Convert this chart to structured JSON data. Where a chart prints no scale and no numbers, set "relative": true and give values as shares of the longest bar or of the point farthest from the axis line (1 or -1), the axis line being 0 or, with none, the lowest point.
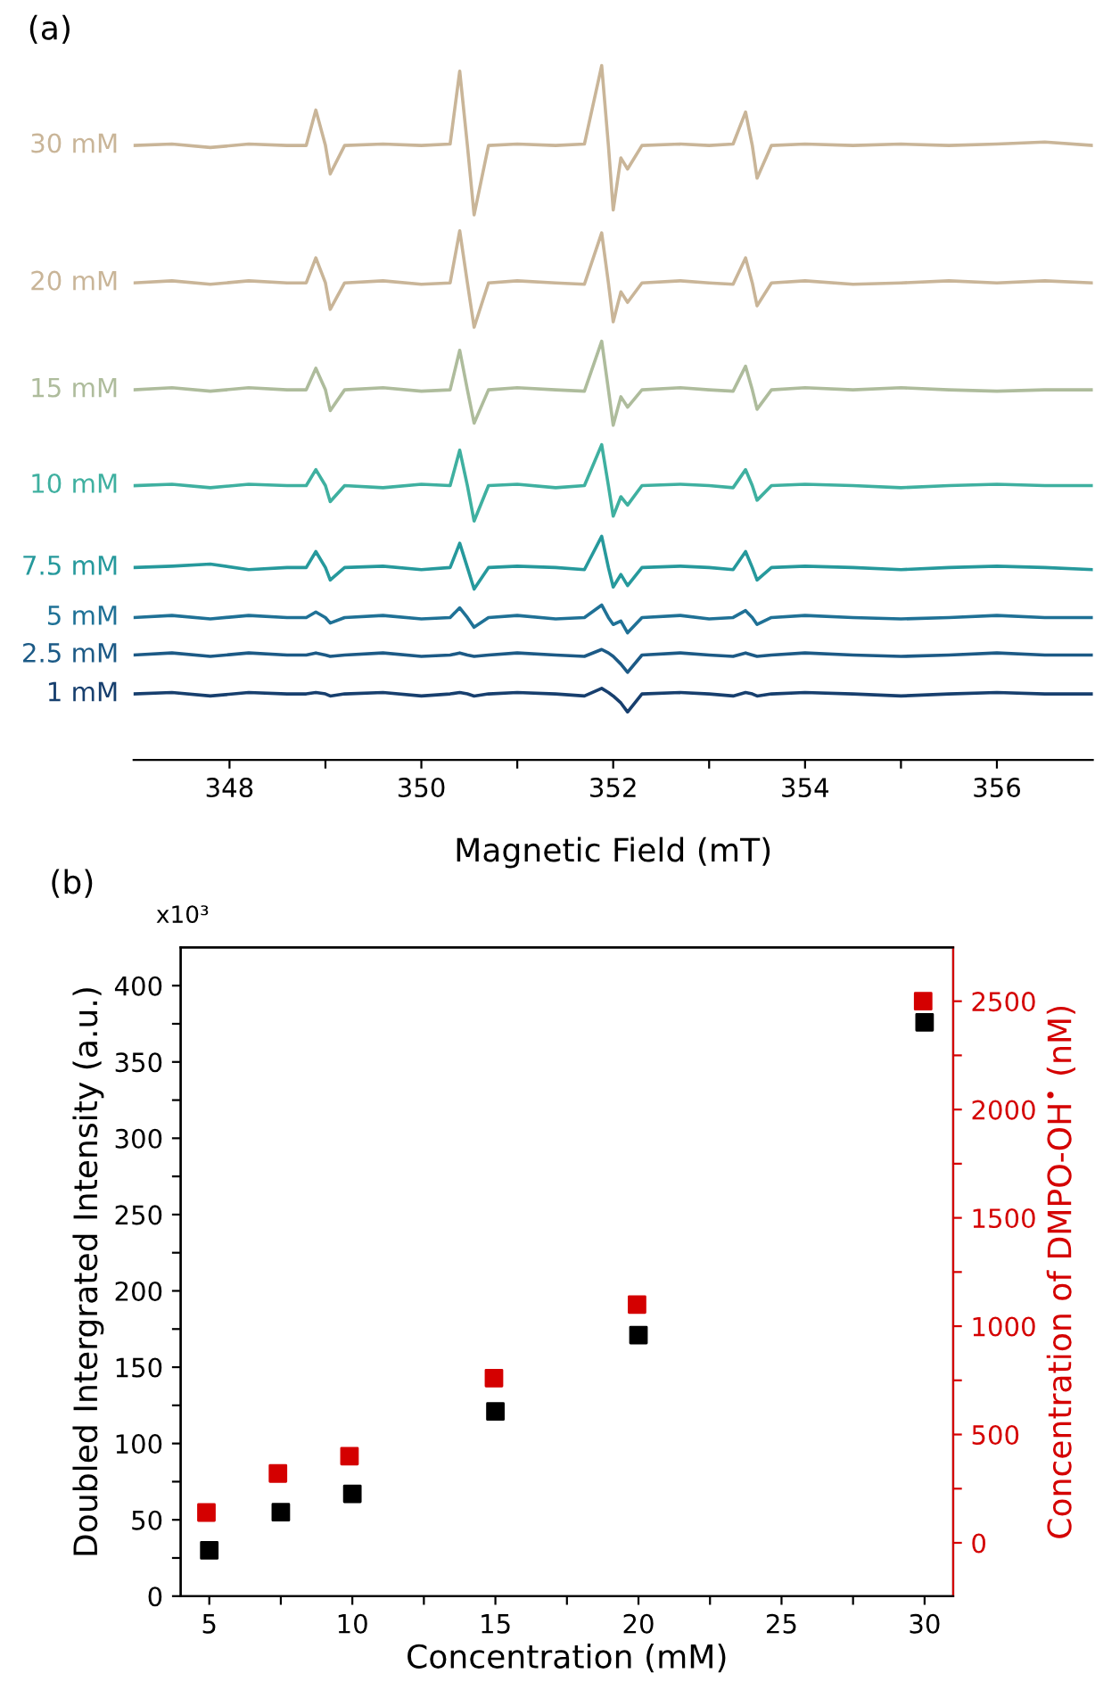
{
  "chart_data": [
    {
      "type": "line",
      "title": "(a)",
      "xlabel": "Magnetic Field (mT)",
      "relative": true,
      "x": [
        347.0,
        347.4,
        347.8,
        348.2,
        348.6,
        348.8,
        348.9,
        349.0,
        349.05,
        349.2,
        349.6,
        350.0,
        350.3,
        350.4,
        350.48,
        350.55,
        350.7,
        351.0,
        351.4,
        351.7,
        351.88,
        351.95,
        352.0,
        352.08,
        352.15,
        352.3,
        352.7,
        353.0,
        353.25,
        353.38,
        353.45,
        353.5,
        353.65,
        354.0,
        354.5,
        355.0,
        355.5,
        356.0,
        356.5,
        357.0
      ],
      "xlim": [
        347,
        357
      ],
      "xticks": [
        348,
        {
          "value": 349,
          "label": null
        },
        350,
        {
          "value": 351,
          "label": null
        },
        352,
        {
          "value": 353,
          "label": null
        },
        354,
        {
          "value": 355,
          "label": null
        },
        356
      ],
      "series": [
        {
          "name": "30 mM",
          "color": "#c9b598",
          "values": [
            0.885,
            0.887,
            0.882,
            0.887,
            0.885,
            0.885,
            0.936,
            0.885,
            0.844,
            0.885,
            0.887,
            0.885,
            0.887,
            0.992,
            0.885,
            0.785,
            0.885,
            0.887,
            0.885,
            0.887,
            1.0,
            0.885,
            0.792,
            0.867,
            0.851,
            0.885,
            0.887,
            0.885,
            0.887,
            0.933,
            0.885,
            0.838,
            0.885,
            0.887,
            0.885,
            0.887,
            0.885,
            0.887,
            0.89,
            0.885
          ]
        },
        {
          "name": "20 mM",
          "color": "#c9b598",
          "values": [
            0.687,
            0.69,
            0.685,
            0.69,
            0.687,
            0.687,
            0.723,
            0.687,
            0.649,
            0.687,
            0.69,
            0.685,
            0.687,
            0.762,
            0.687,
            0.623,
            0.687,
            0.69,
            0.687,
            0.685,
            0.759,
            0.687,
            0.631,
            0.674,
            0.659,
            0.687,
            0.69,
            0.687,
            0.685,
            0.723,
            0.687,
            0.654,
            0.687,
            0.69,
            0.685,
            0.687,
            0.69,
            0.687,
            0.69,
            0.687
          ]
        },
        {
          "name": "15 mM",
          "color": "#aebc9c",
          "values": [
            0.533,
            0.536,
            0.531,
            0.536,
            0.533,
            0.533,
            0.564,
            0.533,
            0.503,
            0.533,
            0.536,
            0.531,
            0.533,
            0.59,
            0.533,
            0.485,
            0.533,
            0.536,
            0.533,
            0.531,
            0.603,
            0.533,
            0.482,
            0.523,
            0.508,
            0.533,
            0.536,
            0.533,
            0.531,
            0.567,
            0.533,
            0.505,
            0.533,
            0.536,
            0.533,
            0.536,
            0.533,
            0.531,
            0.533,
            0.533
          ]
        },
        {
          "name": "10 mM",
          "color": "#3fb0a0",
          "values": [
            0.395,
            0.397,
            0.392,
            0.397,
            0.395,
            0.395,
            0.418,
            0.395,
            0.372,
            0.395,
            0.392,
            0.397,
            0.395,
            0.446,
            0.395,
            0.344,
            0.395,
            0.397,
            0.392,
            0.395,
            0.454,
            0.395,
            0.351,
            0.379,
            0.367,
            0.395,
            0.397,
            0.395,
            0.392,
            0.418,
            0.395,
            0.374,
            0.395,
            0.397,
            0.395,
            0.392,
            0.395,
            0.397,
            0.395,
            0.395
          ]
        },
        {
          "name": "7.5 mM",
          "color": "#26999c",
          "values": [
            0.277,
            0.279,
            0.282,
            0.274,
            0.277,
            0.277,
            0.3,
            0.277,
            0.259,
            0.277,
            0.279,
            0.274,
            0.277,
            0.312,
            0.277,
            0.246,
            0.277,
            0.279,
            0.277,
            0.274,
            0.322,
            0.277,
            0.249,
            0.267,
            0.251,
            0.277,
            0.279,
            0.277,
            0.274,
            0.3,
            0.277,
            0.259,
            0.277,
            0.279,
            0.277,
            0.274,
            0.277,
            0.279,
            0.277,
            0.274
          ]
        },
        {
          "name": "5 mM",
          "color": "#1f7196",
          "values": [
            0.205,
            0.208,
            0.203,
            0.208,
            0.205,
            0.205,
            0.213,
            0.205,
            0.197,
            0.205,
            0.208,
            0.203,
            0.205,
            0.219,
            0.205,
            0.191,
            0.205,
            0.208,
            0.203,
            0.205,
            0.223,
            0.205,
            0.195,
            0.2,
            0.183,
            0.205,
            0.208,
            0.203,
            0.205,
            0.215,
            0.205,
            0.195,
            0.205,
            0.208,
            0.205,
            0.203,
            0.205,
            0.208,
            0.205,
            0.205
          ]
        },
        {
          "name": "2.5 mM",
          "color": "#1c5a86",
          "values": [
            0.151,
            0.154,
            0.149,
            0.154,
            0.151,
            0.151,
            0.154,
            0.151,
            0.149,
            0.151,
            0.154,
            0.149,
            0.151,
            0.154,
            0.151,
            0.149,
            0.151,
            0.154,
            0.151,
            0.149,
            0.159,
            0.154,
            0.149,
            0.138,
            0.126,
            0.151,
            0.154,
            0.151,
            0.149,
            0.154,
            0.151,
            0.149,
            0.151,
            0.154,
            0.151,
            0.149,
            0.151,
            0.154,
            0.151,
            0.151
          ]
        },
        {
          "name": "1 mM",
          "color": "#173f6e",
          "values": [
            0.095,
            0.097,
            0.092,
            0.097,
            0.095,
            0.095,
            0.097,
            0.095,
            0.092,
            0.095,
            0.097,
            0.092,
            0.095,
            0.097,
            0.095,
            0.092,
            0.095,
            0.097,
            0.095,
            0.092,
            0.103,
            0.097,
            0.092,
            0.082,
            0.069,
            0.095,
            0.097,
            0.095,
            0.092,
            0.097,
            0.095,
            0.092,
            0.095,
            0.097,
            0.095,
            0.092,
            0.095,
            0.097,
            0.095,
            0.095
          ]
        }
      ]
    },
    {
      "type": "scatter",
      "title": "(b)",
      "xlabel": "Concentration (mM)",
      "ylabel": "Doubled Intergrated Intensity (a.u.)",
      "y2label": "Concentration of DMPO-OH$^{•}$ (nM)",
      "annotations": [
        "x10³"
      ],
      "marker": "square",
      "grid": false,
      "xlim": [
        4,
        31
      ],
      "xticks": [
        5,
        {
          "value": 7.5,
          "label": null
        },
        10,
        {
          "value": 12.5,
          "label": null
        },
        15,
        {
          "value": 17.5,
          "label": null
        },
        20,
        {
          "value": 22.5,
          "label": null
        },
        25,
        {
          "value": 27.5,
          "label": null
        },
        30
      ],
      "ylim": [
        0,
        425
      ],
      "yticks": [
        0,
        {
          "value": 25,
          "label": null
        },
        50,
        {
          "value": 75,
          "label": null
        },
        100,
        {
          "value": 125,
          "label": null
        },
        150,
        {
          "value": 175,
          "label": null
        },
        200,
        {
          "value": 225,
          "label": null
        },
        250,
        {
          "value": 275,
          "label": null
        },
        300,
        {
          "value": 325,
          "label": null
        },
        350,
        {
          "value": 375,
          "label": null
        },
        400
      ],
      "y2lim": [
        -246,
        2748
      ],
      "y2ticks": [
        0,
        {
          "value": 250,
          "label": null
        },
        500,
        {
          "value": 750,
          "label": null
        },
        1000,
        {
          "value": 1250,
          "label": null
        },
        1500,
        {
          "value": 1750,
          "label": null
        },
        2000,
        {
          "value": 2250,
          "label": null
        },
        2500
      ],
      "series": [
        {
          "color": "#000000",
          "x": [
            5,
            7.5,
            10,
            15,
            20,
            30
          ],
          "values": [
            30,
            55,
            67,
            121,
            171,
            376
          ]
        },
        {
          "color": "#d40000",
          "axis": "y2",
          "x": [
            4.9,
            7.4,
            9.9,
            14.95,
            19.95,
            29.95
          ],
          "values": [
            140,
            320,
            400,
            760,
            1100,
            2500
          ]
        }
      ]
    }
  ]
}
